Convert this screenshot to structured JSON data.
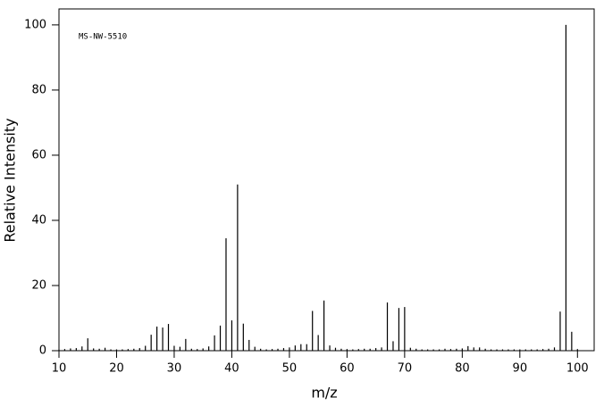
{
  "chart_data": {
    "type": "stem",
    "annotation": "MS-NW-5510",
    "xlabel": "m/z",
    "ylabel": "Relative Intensity",
    "color": "#000000",
    "x": [
      10,
      11,
      12,
      13,
      14,
      15,
      16,
      17,
      18,
      19,
      20,
      21,
      22,
      23,
      24,
      25,
      26,
      27,
      28,
      29,
      30,
      31,
      32,
      33,
      34,
      35,
      36,
      37,
      38,
      39,
      40,
      41,
      42,
      43,
      44,
      45,
      46,
      47,
      48,
      49,
      50,
      51,
      52,
      53,
      54,
      55,
      56,
      57,
      58,
      59,
      60,
      61,
      62,
      63,
      64,
      65,
      66,
      67,
      68,
      69,
      70,
      71,
      72,
      73,
      74,
      75,
      76,
      77,
      78,
      79,
      80,
      81,
      82,
      83,
      84,
      85,
      86,
      87,
      88,
      89,
      90,
      91,
      92,
      93,
      94,
      95,
      96,
      97,
      98,
      99,
      100
    ],
    "values": [
      0.3,
      0.5,
      0.7,
      0.8,
      1.3,
      3.8,
      0.7,
      0.6,
      0.9,
      0.4,
      0.4,
      0.4,
      0.5,
      0.6,
      0.8,
      1.5,
      4.9,
      7.4,
      7.1,
      8.2,
      1.5,
      1.2,
      3.6,
      0.6,
      0.5,
      0.7,
      1.3,
      4.7,
      7.7,
      34.5,
      9.3,
      51,
      8.3,
      3.3,
      1.2,
      0.6,
      0.4,
      0.5,
      0.6,
      0.8,
      1.0,
      1.6,
      2.0,
      2.0,
      12.2,
      4.8,
      15.4,
      1.6,
      0.9,
      0.6,
      0.5,
      0.4,
      0.5,
      0.6,
      0.6,
      0.8,
      1.0,
      14.8,
      2.9,
      13.1,
      13.4,
      0.9,
      0.6,
      0.4,
      0.4,
      0.4,
      0.4,
      0.6,
      0.5,
      0.6,
      0.7,
      1.4,
      1.0,
      1.0,
      0.6,
      0.4,
      0.4,
      0.4,
      0.4,
      0.4,
      0.4,
      0.4,
      0.4,
      0.4,
      0.5,
      0.6,
      1.0,
      12,
      100,
      5.8,
      0.5
    ],
    "xlim": [
      10,
      102.9
    ],
    "xticks": [
      10,
      20,
      30,
      40,
      50,
      60,
      70,
      80,
      90,
      100
    ],
    "ylim": [
      0,
      104.9
    ],
    "yticks": [
      0,
      20,
      40,
      60,
      80,
      100
    ]
  }
}
